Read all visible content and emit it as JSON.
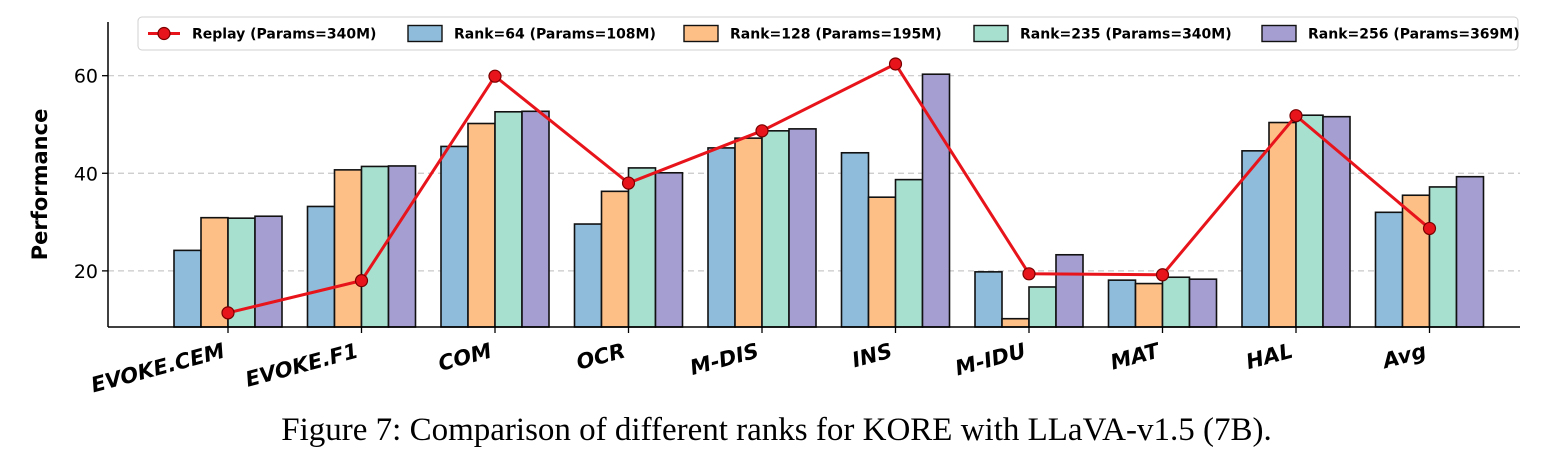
{
  "chart_data": {
    "type": "bar",
    "ylabel": "Performance",
    "ylim": [
      8.5,
      71
    ],
    "yticks": [
      20,
      40,
      60
    ],
    "grid": "horizontal-dashed",
    "legend_position": "top",
    "categories": [
      "EVOKE.CEM",
      "EVOKE.F1",
      "COM",
      "OCR",
      "M-DIS",
      "INS",
      "M-IDU",
      "MAT",
      "HAL",
      "Avg"
    ],
    "series": [
      {
        "name": "Rank=64 (Params=108M)",
        "color": "#8fbcdb",
        "values": [
          24.2,
          33.2,
          45.5,
          29.6,
          45.2,
          44.2,
          19.8,
          18.1,
          44.6,
          32.0
        ]
      },
      {
        "name": "Rank=128 (Params=195M)",
        "color": "#fdbf86",
        "values": [
          30.9,
          40.7,
          50.2,
          36.3,
          47.2,
          35.1,
          10.2,
          17.4,
          50.4,
          35.5
        ]
      },
      {
        "name": "Rank=235 (Params=340M)",
        "color": "#a7e0cf",
        "values": [
          30.8,
          41.4,
          52.6,
          41.1,
          48.7,
          38.7,
          16.7,
          18.7,
          51.9,
          37.2
        ]
      },
      {
        "name": "Rank=256 (Params=369M)",
        "color": "#a59ed1",
        "values": [
          31.2,
          41.5,
          52.7,
          40.1,
          49.1,
          60.3,
          23.3,
          18.3,
          51.6,
          39.3
        ]
      }
    ],
    "line_series": {
      "name": "Replay (Params=340M)",
      "color": "#e8141b",
      "values": [
        11.4,
        18.0,
        59.9,
        38.0,
        48.7,
        62.4,
        19.4,
        19.2,
        51.8,
        28.7
      ]
    }
  },
  "caption": {
    "prefix": "Figure 7: Comparison of different ranks for K",
    "smallcaps": "ORE",
    "suffix": " with LLaVA-v1.5 (7B)."
  }
}
